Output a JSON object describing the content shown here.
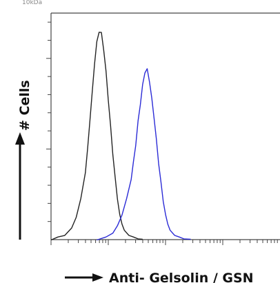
{
  "header": {
    "caption": "10kDa"
  },
  "chart_data": {
    "type": "line",
    "title": "",
    "xlabel": "Anti- Gelsolin / GSN",
    "ylabel": "# Cells",
    "xscale": "log",
    "xlim": [
      0,
      1
    ],
    "ylim": [
      0,
      1
    ],
    "grid": false,
    "legend": "none",
    "series": [
      {
        "color": "#222222",
        "x": [
          0.0,
          0.03,
          0.06,
          0.09,
          0.11,
          0.13,
          0.15,
          0.16,
          0.17,
          0.18,
          0.19,
          0.2,
          0.21,
          0.22,
          0.23,
          0.24,
          0.25,
          0.26,
          0.27,
          0.28,
          0.29,
          0.3,
          0.31,
          0.32,
          0.34,
          0.36,
          0.38,
          0.4
        ],
        "y": [
          0.0,
          0.01,
          0.02,
          0.05,
          0.1,
          0.18,
          0.3,
          0.4,
          0.53,
          0.65,
          0.78,
          0.87,
          0.92,
          0.91,
          0.84,
          0.74,
          0.62,
          0.5,
          0.38,
          0.27,
          0.18,
          0.11,
          0.07,
          0.04,
          0.02,
          0.01,
          0.005,
          0.0
        ]
      },
      {
        "color": "#2a2ad6",
        "x": [
          0.2,
          0.24,
          0.27,
          0.29,
          0.31,
          0.33,
          0.35,
          0.36,
          0.37,
          0.38,
          0.39,
          0.4,
          0.41,
          0.42,
          0.43,
          0.44,
          0.45,
          0.46,
          0.47,
          0.48,
          0.49,
          0.5,
          0.51,
          0.52,
          0.54,
          0.56,
          0.58,
          0.61
        ],
        "y": [
          0.0,
          0.01,
          0.03,
          0.06,
          0.11,
          0.18,
          0.27,
          0.34,
          0.42,
          0.52,
          0.6,
          0.68,
          0.74,
          0.75,
          0.7,
          0.62,
          0.54,
          0.44,
          0.34,
          0.25,
          0.17,
          0.11,
          0.07,
          0.04,
          0.02,
          0.01,
          0.005,
          0.0
        ]
      }
    ]
  }
}
